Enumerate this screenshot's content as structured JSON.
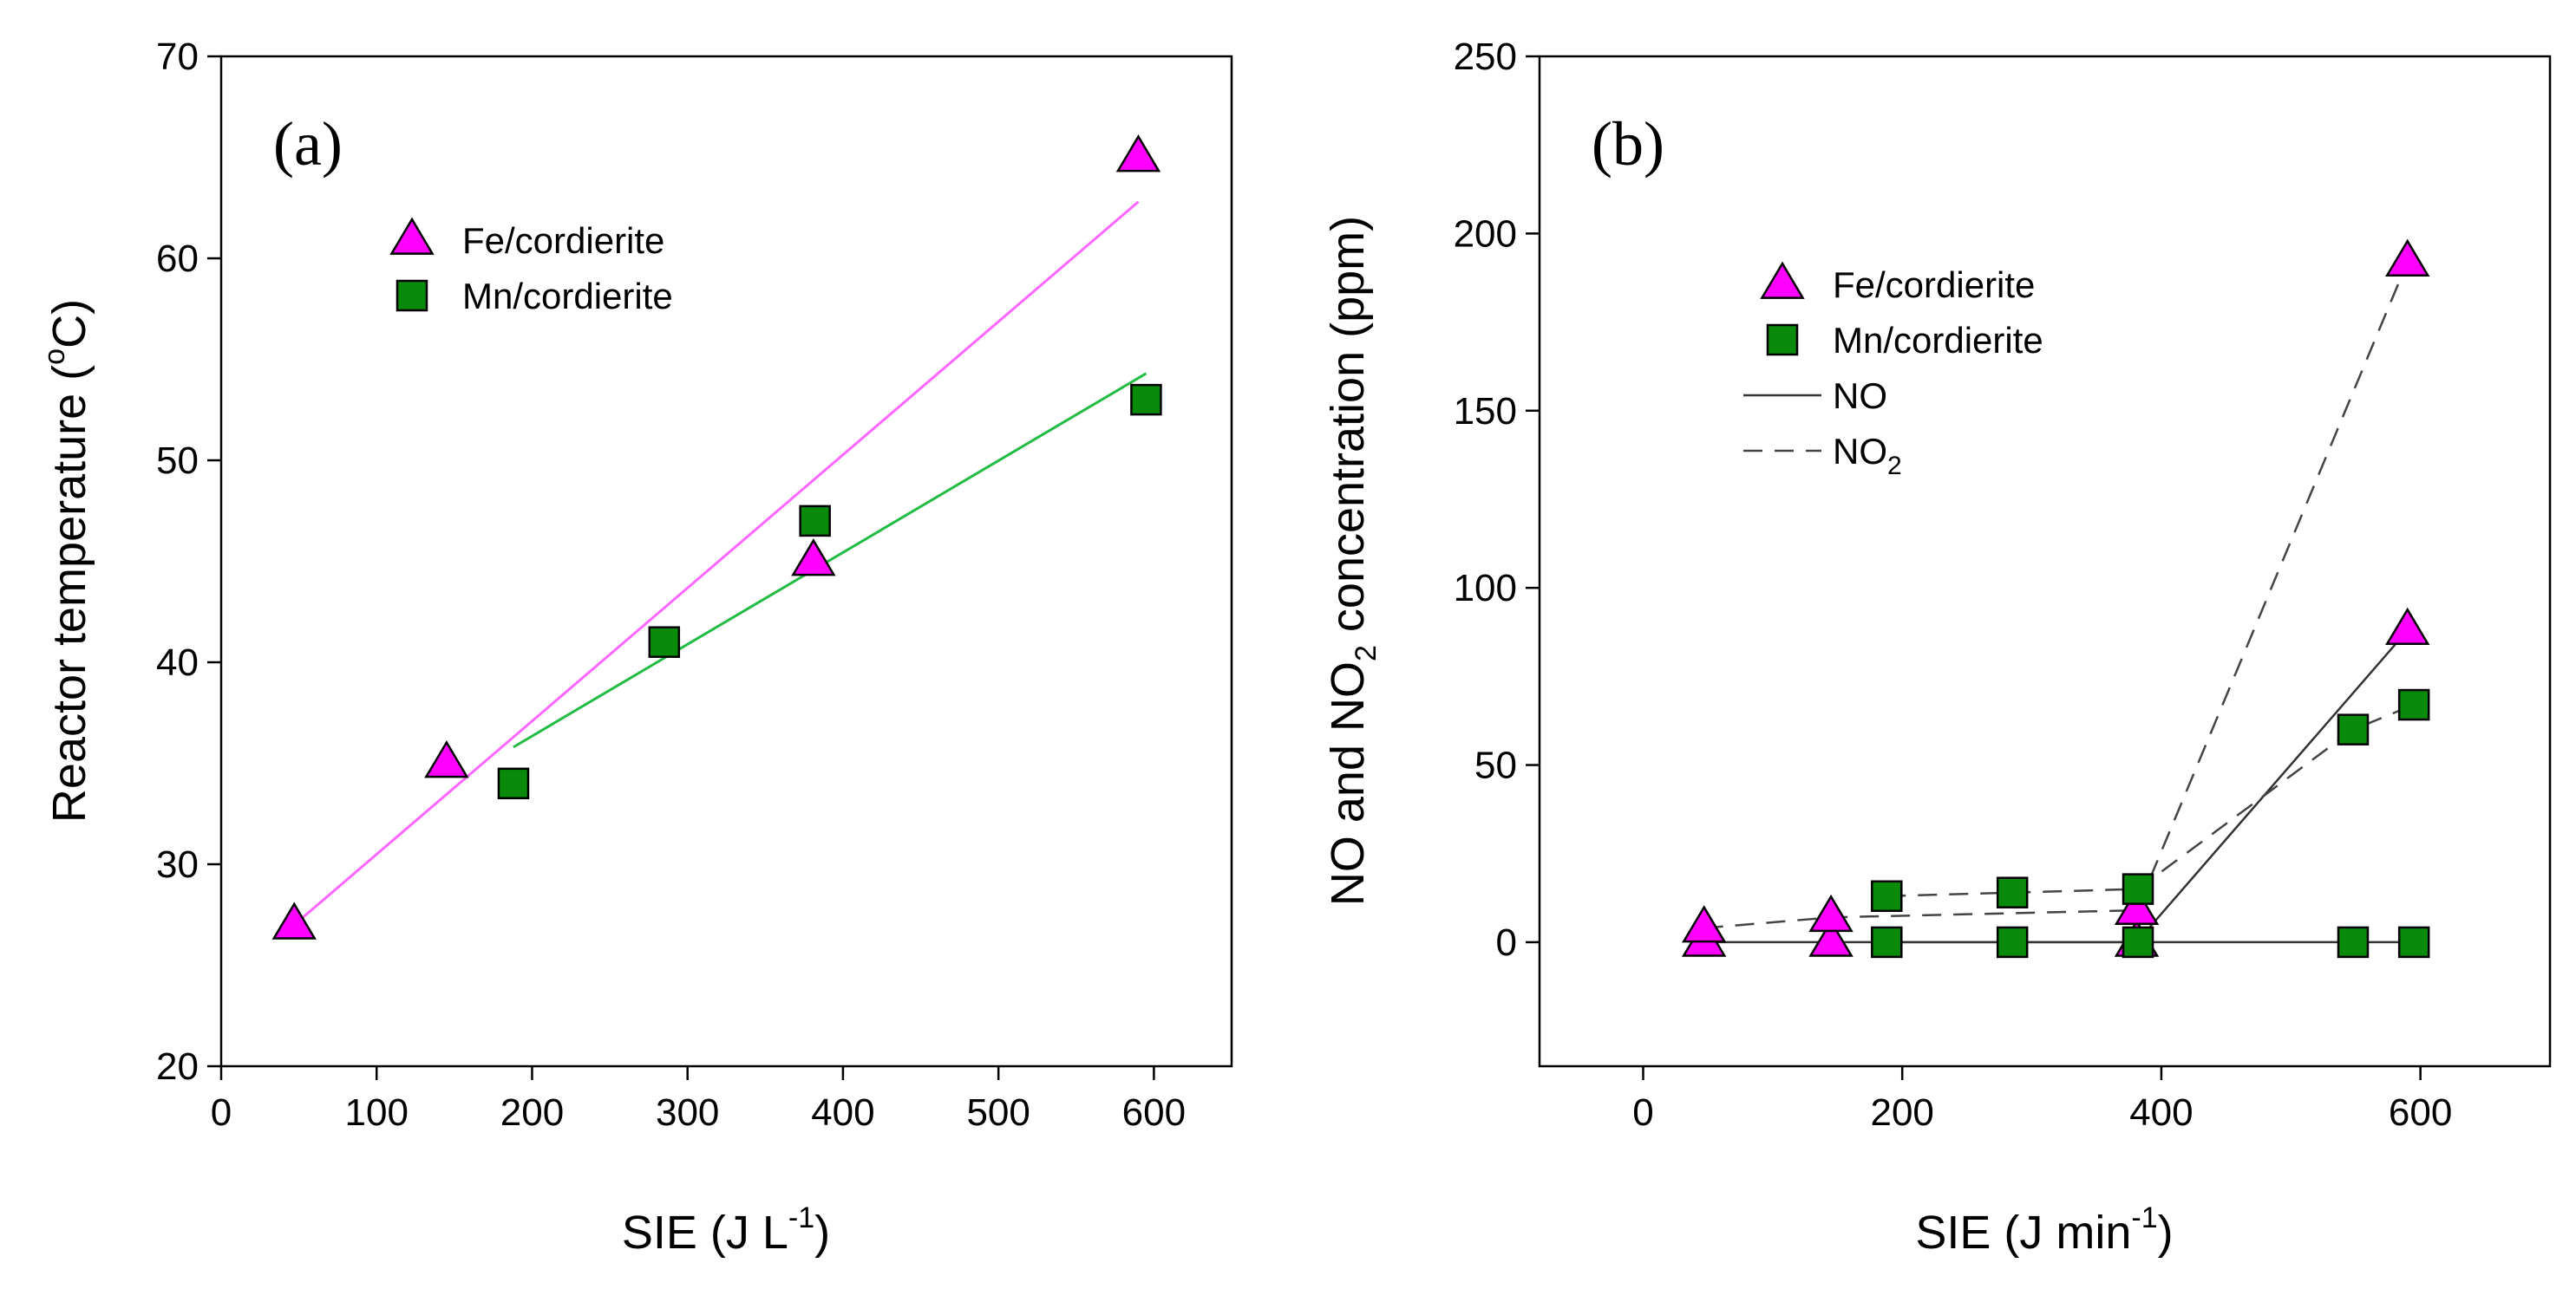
{
  "colors": {
    "fe_marker": "#ff00ff",
    "mn_marker": "#0a8a0a",
    "fe_fit_line": "#ff66ff",
    "mn_fit_line": "#22bb44",
    "no_line": "#333333",
    "no2_line": "#444444"
  },
  "chart_data": [
    {
      "type": "scatter",
      "panel_label": "(a)",
      "xlabel": {
        "main": "SIE (J L",
        "sup": "-1",
        "tail": ")"
      },
      "ylabel": {
        "main": "Reactor temperature (",
        "sup": "o",
        "tail": "C)"
      },
      "xlim": [
        0,
        650
      ],
      "ylim": [
        20,
        70
      ],
      "xticks": [
        0,
        100,
        200,
        300,
        400,
        500,
        600
      ],
      "yticks": [
        20,
        30,
        40,
        50,
        60,
        70
      ],
      "legend": {
        "placement": "upper-left",
        "entries": [
          {
            "label": "Fe/cordierite",
            "marker": "triangle",
            "color_key": "fe_marker"
          },
          {
            "label": "Mn/cordierite",
            "marker": "square",
            "color_key": "mn_marker"
          }
        ]
      },
      "series": [
        {
          "name": "Fe/cordierite",
          "marker": "triangle",
          "color_key": "fe_marker",
          "points": [
            [
              47,
              27
            ],
            [
              145,
              35
            ],
            [
              381,
              45
            ],
            [
              590,
              65
            ]
          ]
        },
        {
          "name": "Mn/cordierite",
          "marker": "square",
          "color_key": "mn_marker",
          "points": [
            [
              188,
              34
            ],
            [
              285,
              41
            ],
            [
              382,
              47
            ],
            [
              595,
              53
            ]
          ]
        }
      ],
      "fit_lines": [
        {
          "name": "Fe/cordierite fit",
          "color_key": "fe_fit_line",
          "x": [
            47,
            590
          ],
          "y": [
            27,
            62.8
          ]
        },
        {
          "name": "Mn/cordierite fit",
          "color_key": "mn_fit_line",
          "x": [
            188,
            595
          ],
          "y": [
            35.8,
            54.3
          ]
        }
      ]
    },
    {
      "type": "line",
      "panel_label": "(b)",
      "xlabel": {
        "main": "SIE (J min",
        "sup": "-1",
        "tail": ")"
      },
      "ylabel": {
        "main": "NO and NO",
        "sub": "2",
        "tail": " concentration (ppm)"
      },
      "xlim": [
        -80,
        700
      ],
      "ylim": [
        -35,
        250
      ],
      "xticks": [
        0,
        200,
        400,
        600
      ],
      "yticks": [
        0,
        50,
        100,
        150,
        200,
        250
      ],
      "legend": {
        "placement": "upper-left",
        "entries": [
          {
            "label": "Fe/cordierite",
            "kind": "marker",
            "marker": "triangle",
            "color_key": "fe_marker"
          },
          {
            "label": "Mn/cordierite",
            "kind": "marker",
            "marker": "square",
            "color_key": "mn_marker"
          },
          {
            "label": "NO",
            "kind": "line",
            "dash": "solid",
            "color_key": "no_line"
          },
          {
            "label": "NO",
            "sub": "2",
            "kind": "line",
            "dash": "dashed",
            "color_key": "no2_line"
          }
        ]
      },
      "series": [
        {
          "name": "Fe/cordierite NO",
          "marker": "triangle",
          "color_key": "fe_marker",
          "line": "solid",
          "line_color_key": "no_line",
          "points": [
            [
              47,
              0
            ],
            [
              145,
              0
            ],
            [
              381,
              0
            ],
            [
              590,
              88
            ]
          ]
        },
        {
          "name": "Fe/cordierite NO2",
          "marker": "triangle",
          "color_key": "fe_marker",
          "line": "dashed",
          "line_color_key": "no2_line",
          "points": [
            [
              47,
              4
            ],
            [
              145,
              7
            ],
            [
              381,
              9
            ],
            [
              590,
              192
            ]
          ]
        },
        {
          "name": "Mn/cordierite NO",
          "marker": "square",
          "color_key": "mn_marker",
          "line": "solid",
          "line_color_key": "no_line",
          "points": [
            [
              188,
              0
            ],
            [
              285,
              0
            ],
            [
              382,
              0
            ],
            [
              548,
              0
            ],
            [
              595,
              0
            ]
          ]
        },
        {
          "name": "Mn/cordierite NO2",
          "marker": "square",
          "color_key": "mn_marker",
          "line": "dashed",
          "line_color_key": "no2_line",
          "points": [
            [
              188,
              13
            ],
            [
              285,
              14
            ],
            [
              382,
              15
            ],
            [
              548,
              60
            ],
            [
              595,
              67
            ]
          ]
        }
      ]
    }
  ]
}
